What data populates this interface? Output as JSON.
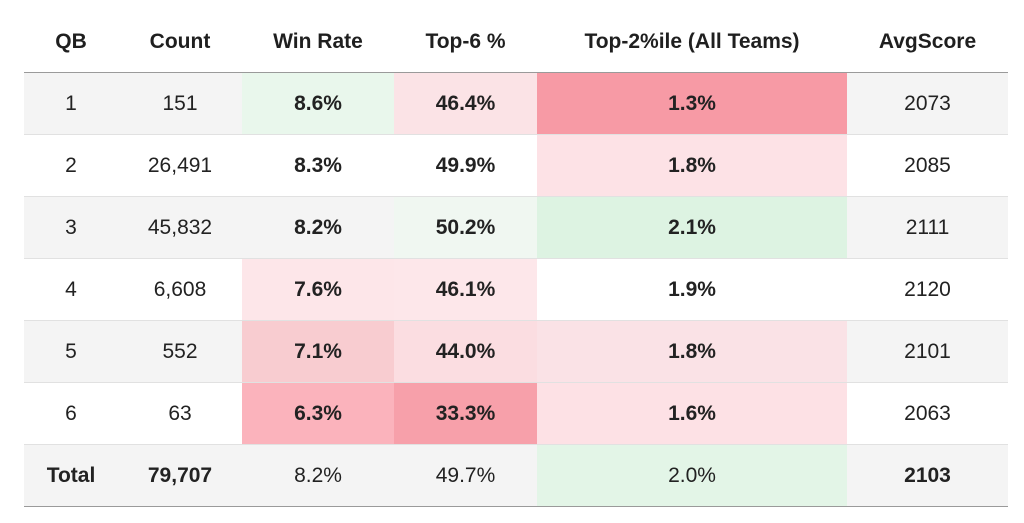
{
  "table": {
    "headers": [
      "QB",
      "Count",
      "Win Rate",
      "Top-6 %",
      "Top-2%ile (All Teams)",
      "AvgScore"
    ],
    "rows": [
      {
        "qb": "1",
        "count": "151",
        "win_rate": "8.6%",
        "top6": "46.4%",
        "top2": "1.3%",
        "avg": "2073",
        "colors": {
          "win_rate": "#e9f7ec",
          "top6": "#fbe3e6",
          "top2": "#f79aa5"
        }
      },
      {
        "qb": "2",
        "count": "26,491",
        "win_rate": "8.3%",
        "top6": "49.9%",
        "top2": "1.8%",
        "avg": "2085",
        "colors": {
          "win_rate": "#ffffff",
          "top6": "#ffffff",
          "top2": "#fde2e6"
        }
      },
      {
        "qb": "3",
        "count": "45,832",
        "win_rate": "8.2%",
        "top6": "50.2%",
        "top2": "2.1%",
        "avg": "2111",
        "colors": {
          "win_rate": "#f4f4f4",
          "top6": "#f0f7f1",
          "top2": "#ddf3e2"
        }
      },
      {
        "qb": "4",
        "count": "6,608",
        "win_rate": "7.6%",
        "top6": "46.1%",
        "top2": "1.9%",
        "avg": "2120",
        "colors": {
          "win_rate": "#fde6e9",
          "top6": "#fde7ea",
          "top2": "#ffffff"
        }
      },
      {
        "qb": "5",
        "count": "552",
        "win_rate": "7.1%",
        "top6": "44.0%",
        "top2": "1.8%",
        "avg": "2101",
        "colors": {
          "win_rate": "#f8ccd0",
          "top6": "#fbdde1",
          "top2": "#fae2e6"
        }
      },
      {
        "qb": "6",
        "count": "63",
        "win_rate": "6.3%",
        "top6": "33.3%",
        "top2": "1.6%",
        "avg": "2063",
        "colors": {
          "win_rate": "#fbb3bc",
          "top6": "#f7a0aa",
          "top2": "#fde1e5"
        }
      }
    ],
    "total": {
      "qb": "Total",
      "count": "79,707",
      "win_rate": "8.2%",
      "top6": "49.7%",
      "top2": "2.0%",
      "avg": "2103",
      "colors": {
        "win_rate": "#f4f4f4",
        "top6": "#f4f4f4",
        "top2": "#e3f5e7"
      }
    }
  }
}
